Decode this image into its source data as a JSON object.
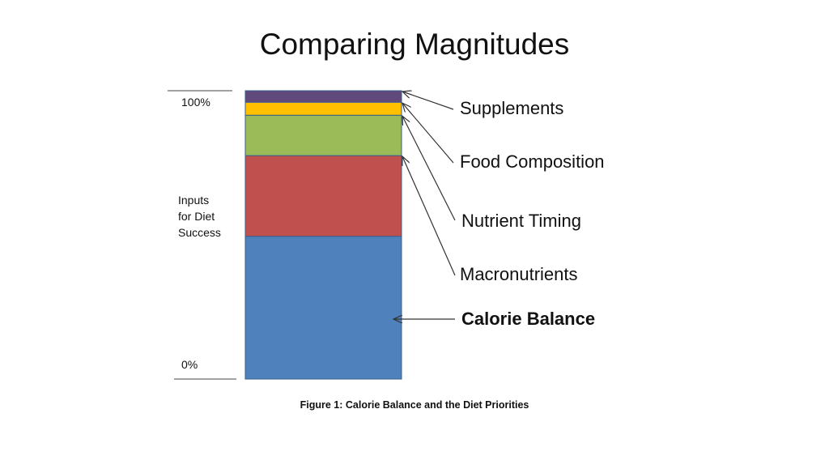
{
  "chart_data": {
    "type": "bar",
    "stacked": true,
    "title": "Comparing Magnitudes",
    "ylabel": [
      "Inputs",
      "for Diet",
      "Success"
    ],
    "ytick_labels": [
      "100%",
      "0%"
    ],
    "ylim": [
      0,
      100
    ],
    "series": [
      {
        "name": "Calorie Balance",
        "value": 49.5,
        "color": "#4f81bd",
        "bold": true
      },
      {
        "name": "Macronutrients",
        "value": 28,
        "color": "#c0504d",
        "bold": false
      },
      {
        "name": "Nutrient Timing",
        "value": 14,
        "color": "#9bbb59",
        "bold": false
      },
      {
        "name": "Food Composition",
        "value": 4.5,
        "color": "#ffc000",
        "bold": false
      },
      {
        "name": "Supplements",
        "value": 4,
        "color": "#604a7b",
        "bold": false
      }
    ],
    "caption": "Figure 1: Calorie Balance and the Diet Priorities"
  }
}
